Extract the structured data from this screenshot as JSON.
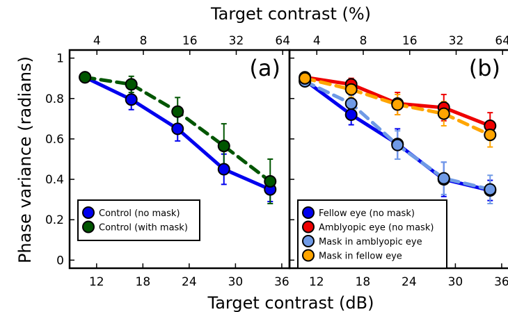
{
  "chart_data": [
    {
      "type": "line",
      "panel_label": "(a)",
      "xlabel": "Target contrast (dB)",
      "x2label": "Target contrast (%)",
      "ylabel": "Phase variance (radians)",
      "xlim": [
        8.5,
        37
      ],
      "ylim": [
        -0.04,
        1.04
      ],
      "xticks": [
        12,
        18,
        24,
        30,
        36
      ],
      "x2ticks": [
        "4",
        "8",
        "16",
        "32",
        "64"
      ],
      "x2tick_db": [
        12.04,
        18.06,
        24.08,
        30.1,
        36.12
      ],
      "yticks": [
        0,
        0.2,
        0.4,
        0.6,
        0.8,
        1
      ],
      "legend_position": "bottom-left",
      "series": [
        {
          "name": "Control (no mask)",
          "color": "#0000ee",
          "line_style": "solid",
          "x": [
            10.5,
            16.5,
            22.5,
            28.5,
            34.5
          ],
          "y": [
            0.905,
            0.795,
            0.65,
            0.45,
            0.35
          ],
          "err": [
            0.01,
            0.05,
            0.06,
            0.075,
            0.06
          ]
        },
        {
          "name": "Control (with mask)",
          "color": "#005500",
          "line_style": "dashed",
          "x": [
            10.5,
            16.5,
            22.5,
            28.5,
            34.5
          ],
          "y": [
            0.905,
            0.87,
            0.735,
            0.565,
            0.39
          ],
          "err": [
            0.01,
            0.04,
            0.07,
            0.11,
            0.11
          ]
        }
      ]
    },
    {
      "type": "line",
      "panel_label": "(b)",
      "xlabel": "Target contrast (dB)",
      "x2label": "Target contrast (%)",
      "xlim": [
        8.5,
        37
      ],
      "ylim": [
        -0.04,
        1.04
      ],
      "xticks": [
        12,
        18,
        24,
        30,
        36
      ],
      "x2ticks": [
        "4",
        "8",
        "16",
        "32",
        "64"
      ],
      "x2tick_db": [
        12.04,
        18.06,
        24.08,
        30.1,
        36.12
      ],
      "legend_position": "bottom-left",
      "series": [
        {
          "name": "Fellow eye (no mask)",
          "color": "#0000ee",
          "line_style": "solid",
          "x": [
            10.5,
            16.5,
            22.5,
            28.5,
            34.5
          ],
          "y": [
            0.89,
            0.72,
            0.575,
            0.4,
            0.345
          ],
          "err": [
            0.01,
            0.05,
            0.075,
            0.085,
            0.05
          ]
        },
        {
          "name": "Amblyopic eye (no mask)",
          "color": "#ee0000",
          "line_style": "solid",
          "x": [
            10.5,
            16.5,
            22.5,
            28.5,
            34.5
          ],
          "y": [
            0.905,
            0.87,
            0.775,
            0.755,
            0.665
          ],
          "err": [
            0.01,
            0.03,
            0.055,
            0.065,
            0.065
          ]
        },
        {
          "name": "Mask in amblyopic eye",
          "color": "#6f9ae6",
          "line_style": "dashed",
          "x": [
            10.5,
            16.5,
            22.5,
            28.5,
            34.5
          ],
          "y": [
            0.885,
            0.775,
            0.57,
            0.405,
            0.35
          ],
          "err": [
            0.01,
            0.04,
            0.07,
            0.08,
            0.07
          ]
        },
        {
          "name": "Mask in fellow eye",
          "color": "#ffa500",
          "line_style": "dashed",
          "x": [
            10.5,
            16.5,
            22.5,
            28.5,
            34.5
          ],
          "y": [
            0.9,
            0.845,
            0.77,
            0.725,
            0.62
          ],
          "err": [
            0.01,
            0.04,
            0.05,
            0.06,
            0.06
          ]
        }
      ]
    }
  ]
}
